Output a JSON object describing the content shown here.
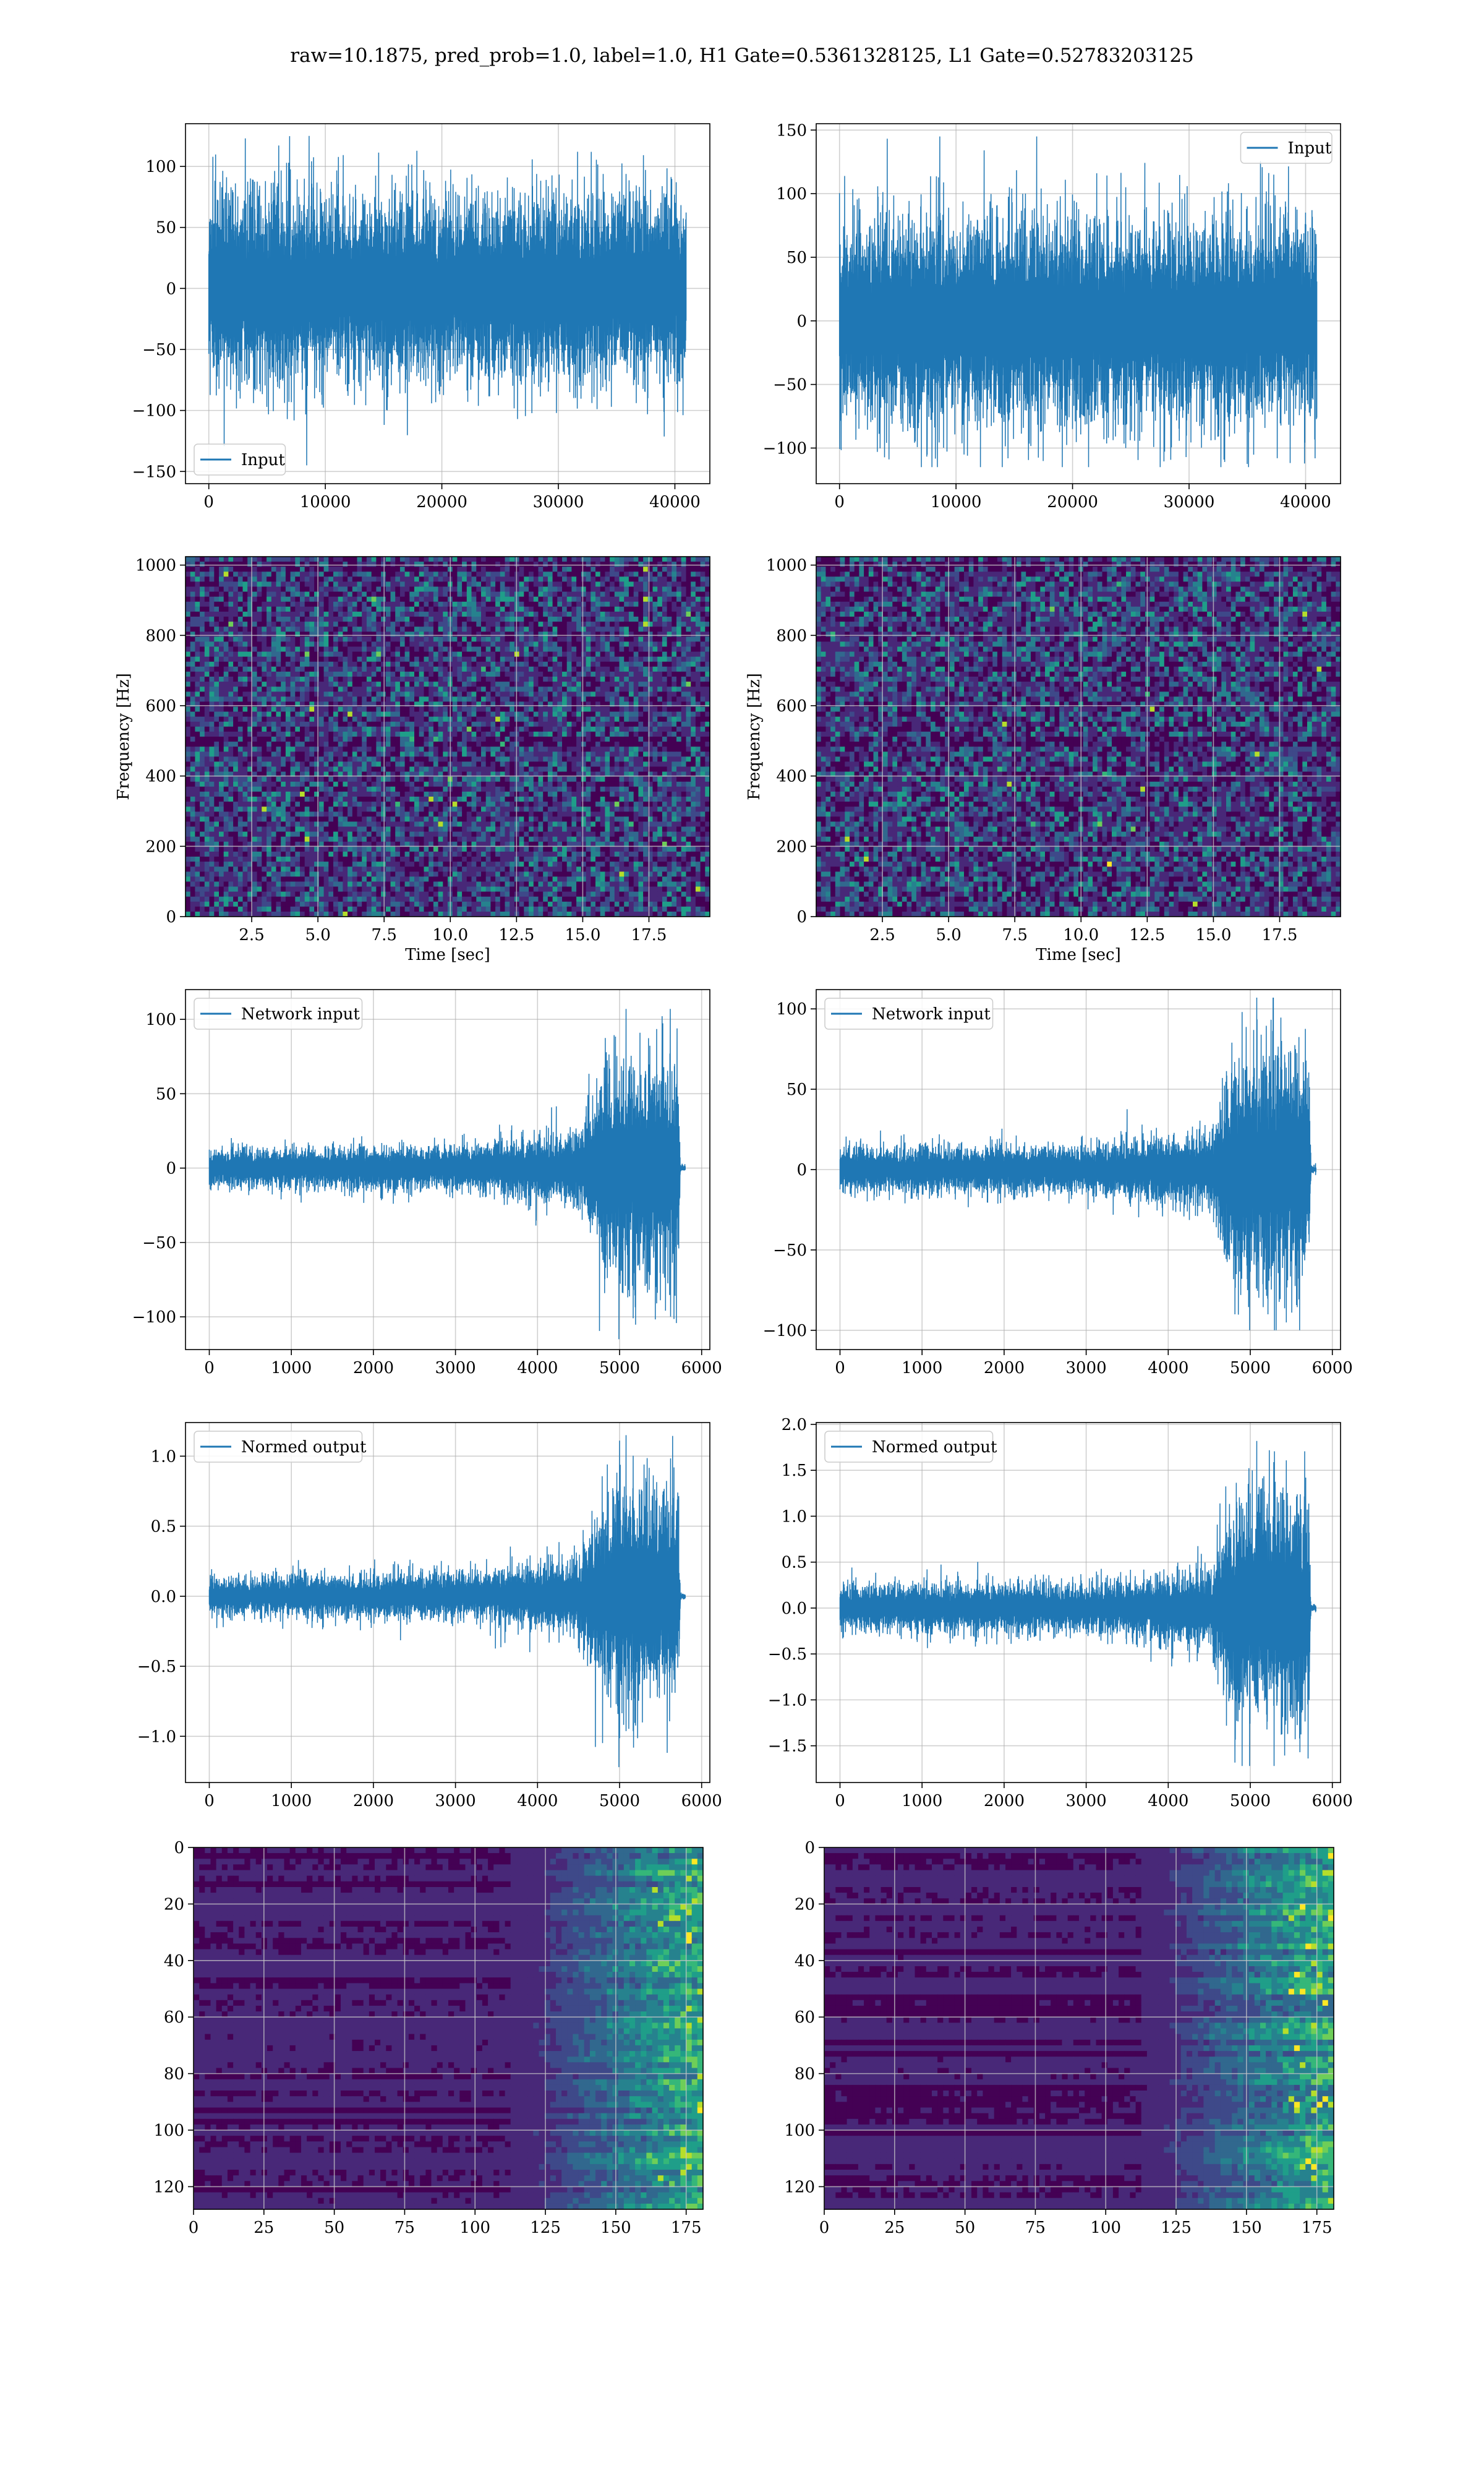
{
  "figure": {
    "title": "raw=10.1875, pred_prob=1.0, label=1.0, H1 Gate=0.5361328125, L1 Gate=0.52783203125",
    "colors": {
      "line": "#1f77b4",
      "grid": "#b0b0b0",
      "viridis": [
        "#440154",
        "#482878",
        "#3e4989",
        "#31688e",
        "#26828e",
        "#1f9e89",
        "#35b779",
        "#6ece58",
        "#b5de2b",
        "#fde725"
      ]
    }
  },
  "chart_data": [
    {
      "id": "raw-h1",
      "type": "line",
      "series": [
        {
          "name": "Input"
        }
      ],
      "legend": "lower-left",
      "grid": true,
      "xlim": [
        -2000,
        43000
      ],
      "ylim": [
        -160,
        135
      ],
      "xticks": [
        "0",
        "10000",
        "20000",
        "30000",
        "40000"
      ],
      "xtick_values": [
        0,
        10000,
        20000,
        30000,
        40000
      ],
      "yticks": [
        "100",
        "50",
        "0",
        "−50",
        "−100",
        "−150"
      ],
      "ytick_values": [
        100,
        50,
        0,
        -50,
        -100,
        -150
      ],
      "signal": {
        "x_range": [
          0,
          40960
        ],
        "envelope": [
          [
            0,
            60
          ],
          [
            1,
            60
          ]
        ],
        "peak_max": 125,
        "peak_min": -145
      }
    },
    {
      "id": "raw-l1",
      "type": "line",
      "series": [
        {
          "name": "Input"
        }
      ],
      "legend": "upper-right",
      "grid": true,
      "xlim": [
        -2000,
        43000
      ],
      "ylim": [
        -128,
        155
      ],
      "xticks": [
        "0",
        "10000",
        "20000",
        "30000",
        "40000"
      ],
      "xtick_values": [
        0,
        10000,
        20000,
        30000,
        40000
      ],
      "yticks": [
        "150",
        "100",
        "50",
        "0",
        "−50",
        "−100"
      ],
      "ytick_values": [
        150,
        100,
        50,
        0,
        -50,
        -100
      ],
      "signal": {
        "x_range": [
          0,
          40960
        ],
        "envelope": [
          [
            0,
            62
          ],
          [
            1,
            62
          ]
        ],
        "peak_max": 145,
        "peak_min": -115
      }
    },
    {
      "id": "spec-h1",
      "type": "heatmap",
      "grid": true,
      "xlabel": "Time [sec]",
      "ylabel": "Frequency [Hz]",
      "xlim": [
        0,
        19.8
      ],
      "ylim": [
        0,
        1024
      ],
      "xticks": [
        "2.5",
        "5.0",
        "7.5",
        "10.0",
        "12.5",
        "15.0",
        "17.5"
      ],
      "xtick_values": [
        2.5,
        5.0,
        7.5,
        10.0,
        12.5,
        15.0,
        17.5
      ],
      "yticks": [
        "0",
        "200",
        "400",
        "600",
        "800",
        "1000"
      ],
      "ytick_values": [
        0,
        200,
        400,
        600,
        800,
        1000
      ],
      "bands": [
        500,
        1000
      ]
    },
    {
      "id": "spec-l1",
      "type": "heatmap",
      "grid": true,
      "xlabel": "Time [sec]",
      "ylabel": "Frequency [Hz]",
      "xlim": [
        0,
        19.8
      ],
      "ylim": [
        0,
        1024
      ],
      "xticks": [
        "2.5",
        "5.0",
        "7.5",
        "10.0",
        "12.5",
        "15.0",
        "17.5"
      ],
      "xtick_values": [
        2.5,
        5.0,
        7.5,
        10.0,
        12.5,
        15.0,
        17.5
      ],
      "yticks": [
        "0",
        "200",
        "400",
        "600",
        "800",
        "1000"
      ],
      "ytick_values": [
        0,
        200,
        400,
        600,
        800,
        1000
      ],
      "bands": [
        500,
        1000
      ]
    },
    {
      "id": "net-h1",
      "type": "line",
      "series": [
        {
          "name": "Network input"
        }
      ],
      "legend": "upper-left",
      "grid": true,
      "xlim": [
        -290,
        6100
      ],
      "ylim": [
        -122,
        120
      ],
      "xticks": [
        "0",
        "1000",
        "2000",
        "3000",
        "4000",
        "5000",
        "6000"
      ],
      "xtick_values": [
        0,
        1000,
        2000,
        3000,
        4000,
        5000,
        6000
      ],
      "yticks": [
        "100",
        "50",
        "0",
        "−50",
        "−100"
      ],
      "ytick_values": [
        100,
        50,
        0,
        -50,
        -100
      ],
      "signal": {
        "x_range": [
          0,
          5800
        ],
        "envelope": [
          [
            0,
            10
          ],
          [
            0.55,
            12
          ],
          [
            0.78,
            20
          ],
          [
            0.83,
            55
          ],
          [
            0.9,
            60
          ],
          [
            0.985,
            55
          ],
          [
            0.99,
            2
          ],
          [
            1,
            2
          ]
        ],
        "peak_max": 107,
        "peak_min": -115
      }
    },
    {
      "id": "net-l1",
      "type": "line",
      "series": [
        {
          "name": "Network input"
        }
      ],
      "legend": "upper-left",
      "grid": true,
      "xlim": [
        -290,
        6100
      ],
      "ylim": [
        -112,
        112
      ],
      "xticks": [
        "0",
        "1000",
        "2000",
        "3000",
        "4000",
        "5000",
        "6000"
      ],
      "xtick_values": [
        0,
        1000,
        2000,
        3000,
        4000,
        5000,
        6000
      ],
      "yticks": [
        "100",
        "50",
        "0",
        "−50",
        "−100"
      ],
      "ytick_values": [
        100,
        50,
        0,
        -50,
        -100
      ],
      "signal": {
        "x_range": [
          0,
          5800
        ],
        "envelope": [
          [
            0,
            11
          ],
          [
            0.55,
            12
          ],
          [
            0.78,
            20
          ],
          [
            0.83,
            55
          ],
          [
            0.9,
            58
          ],
          [
            0.985,
            55
          ],
          [
            0.99,
            2
          ],
          [
            1,
            2
          ]
        ],
        "peak_max": 107,
        "peak_min": -100
      }
    },
    {
      "id": "norm-h1",
      "type": "line",
      "series": [
        {
          "name": "Normed output"
        }
      ],
      "legend": "upper-left",
      "grid": true,
      "xlim": [
        -290,
        6100
      ],
      "ylim": [
        -1.33,
        1.24
      ],
      "xticks": [
        "0",
        "1000",
        "2000",
        "3000",
        "4000",
        "5000",
        "6000"
      ],
      "xtick_values": [
        0,
        1000,
        2000,
        3000,
        4000,
        5000,
        6000
      ],
      "yticks": [
        "1.0",
        "0.5",
        "0.0",
        "−0.5",
        "−1.0"
      ],
      "ytick_values": [
        1.0,
        0.5,
        0.0,
        -0.5,
        -1.0
      ],
      "signal": {
        "x_range": [
          0,
          5800
        ],
        "envelope": [
          [
            0,
            0.11
          ],
          [
            0.55,
            0.13
          ],
          [
            0.78,
            0.22
          ],
          [
            0.83,
            0.6
          ],
          [
            0.9,
            0.65
          ],
          [
            0.985,
            0.6
          ],
          [
            0.99,
            0.02
          ],
          [
            1,
            0.02
          ]
        ],
        "peak_max": 1.15,
        "peak_min": -1.22
      }
    },
    {
      "id": "norm-l1",
      "type": "line",
      "series": [
        {
          "name": "Normed output"
        }
      ],
      "legend": "upper-left",
      "grid": true,
      "xlim": [
        -290,
        6100
      ],
      "ylim": [
        -1.9,
        2.02
      ],
      "xticks": [
        "0",
        "1000",
        "2000",
        "3000",
        "4000",
        "5000",
        "6000"
      ],
      "xtick_values": [
        0,
        1000,
        2000,
        3000,
        4000,
        5000,
        6000
      ],
      "yticks": [
        "2.0",
        "1.5",
        "1.0",
        "0.5",
        "0.0",
        "−0.5",
        "−1.0",
        "−1.5"
      ],
      "ytick_values": [
        2.0,
        1.5,
        1.0,
        0.5,
        0.0,
        -0.5,
        -1.0,
        -1.5
      ],
      "signal": {
        "x_range": [
          0,
          5800
        ],
        "envelope": [
          [
            0,
            0.2
          ],
          [
            0.55,
            0.21
          ],
          [
            0.78,
            0.35
          ],
          [
            0.83,
            0.95
          ],
          [
            0.9,
            1.0
          ],
          [
            0.985,
            0.95
          ],
          [
            0.99,
            0.03
          ],
          [
            1,
            0.03
          ]
        ],
        "peak_max": 1.82,
        "peak_min": -1.72
      }
    },
    {
      "id": "feat-h1",
      "type": "heatmap",
      "grid": true,
      "xlim": [
        0,
        181
      ],
      "ylim": [
        128,
        0
      ],
      "xticks": [
        "0",
        "25",
        "50",
        "75",
        "100",
        "125",
        "150",
        "175"
      ],
      "xtick_values": [
        0,
        25,
        50,
        75,
        100,
        125,
        150,
        175
      ],
      "yticks": [
        "0",
        "20",
        "40",
        "60",
        "80",
        "100",
        "120"
      ],
      "ytick_values": [
        0,
        20,
        40,
        60,
        80,
        100,
        120
      ]
    },
    {
      "id": "feat-l1",
      "type": "heatmap",
      "grid": true,
      "xlim": [
        0,
        181
      ],
      "ylim": [
        128,
        0
      ],
      "xticks": [
        "0",
        "25",
        "50",
        "75",
        "100",
        "125",
        "150",
        "175"
      ],
      "xtick_values": [
        0,
        25,
        50,
        75,
        100,
        125,
        150,
        175
      ],
      "yticks": [
        "0",
        "20",
        "40",
        "60",
        "80",
        "100",
        "120"
      ],
      "ytick_values": [
        0,
        20,
        40,
        60,
        80,
        100,
        120
      ]
    }
  ]
}
